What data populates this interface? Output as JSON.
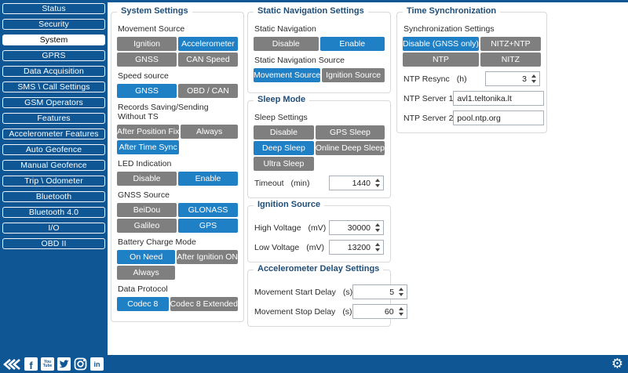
{
  "colors": {
    "dark_blue": "#0e5694",
    "accent_blue": "#1f80c5",
    "button_gray": "#7f7f7f",
    "title_blue": "#1f4e79"
  },
  "sidebar": {
    "items": [
      {
        "label": "Status",
        "active": false
      },
      {
        "label": "Security",
        "active": false
      },
      {
        "label": "System",
        "active": true
      },
      {
        "label": "GPRS",
        "active": false
      },
      {
        "label": "Data Acquisition",
        "active": false
      },
      {
        "label": "SMS \\ Call Settings",
        "active": false
      },
      {
        "label": "GSM Operators",
        "active": false
      },
      {
        "label": "Features",
        "active": false
      },
      {
        "label": "Accelerometer Features",
        "active": false
      },
      {
        "label": "Auto Geofence",
        "active": false
      },
      {
        "label": "Manual Geofence",
        "active": false
      },
      {
        "label": "Trip \\ Odometer",
        "active": false
      },
      {
        "label": "Bluetooth",
        "active": false
      },
      {
        "label": "Bluetooth 4.0",
        "active": false
      },
      {
        "label": "I/O",
        "active": false
      },
      {
        "label": "OBD II",
        "active": false
      }
    ]
  },
  "columns": {
    "col1": [
      {
        "title": "System Settings",
        "items": [
          {
            "type": "label",
            "text": "Movement Source"
          },
          {
            "type": "toggles",
            "buttons": [
              {
                "label": "Ignition",
                "selected": false
              },
              {
                "label": "Accelerometer",
                "selected": true
              },
              {
                "label": "GNSS",
                "selected": false
              },
              {
                "label": "CAN Speed",
                "selected": false
              }
            ]
          },
          {
            "type": "label",
            "text": "Speed source"
          },
          {
            "type": "toggles",
            "buttons": [
              {
                "label": "GNSS",
                "selected": true
              },
              {
                "label": "OBD / CAN",
                "selected": false
              }
            ]
          },
          {
            "type": "label",
            "text": "Records Saving/Sending Without TS"
          },
          {
            "type": "toggles",
            "buttons": [
              {
                "label": "After Position Fix",
                "selected": false
              },
              {
                "label": "Always",
                "selected": false
              },
              {
                "label": "After Time Sync",
                "selected": true
              }
            ]
          },
          {
            "type": "label",
            "text": "LED Indication"
          },
          {
            "type": "toggles",
            "buttons": [
              {
                "label": "Disable",
                "selected": false
              },
              {
                "label": "Enable",
                "selected": true
              }
            ]
          },
          {
            "type": "label",
            "text": "GNSS Source"
          },
          {
            "type": "toggles",
            "buttons": [
              {
                "label": "BeiDou",
                "selected": false
              },
              {
                "label": "GLONASS",
                "selected": true
              },
              {
                "label": "Galileo",
                "selected": false
              },
              {
                "label": "GPS",
                "selected": true
              }
            ]
          },
          {
            "type": "label",
            "text": "Battery Charge Mode"
          },
          {
            "type": "toggles",
            "buttons": [
              {
                "label": "On Need",
                "selected": true
              },
              {
                "label": "After Ignition ON",
                "selected": false
              },
              {
                "label": "Always",
                "selected": false
              }
            ]
          },
          {
            "type": "label",
            "text": "Data Protocol"
          },
          {
            "type": "toggles",
            "buttons": [
              {
                "label": "Codec 8",
                "selected": true
              },
              {
                "label": "Codec 8 Extended",
                "selected": false
              }
            ]
          }
        ]
      }
    ],
    "col2": [
      {
        "title": "Static Navigation Settings",
        "items": [
          {
            "type": "label",
            "text": "Static Navigation"
          },
          {
            "type": "toggles",
            "buttons": [
              {
                "label": "Disable",
                "selected": false
              },
              {
                "label": "Enable",
                "selected": true
              }
            ]
          },
          {
            "type": "label",
            "text": "Static Navigation Source"
          },
          {
            "type": "toggles",
            "buttons": [
              {
                "label": "Movement Source",
                "selected": true
              },
              {
                "label": "Ignition Source",
                "selected": false
              }
            ]
          }
        ]
      },
      {
        "title": "Sleep Mode",
        "items": [
          {
            "type": "label",
            "text": "Sleep Settings"
          },
          {
            "type": "toggles",
            "buttons": [
              {
                "label": "Disable",
                "selected": false
              },
              {
                "label": "GPS Sleep",
                "selected": false
              },
              {
                "label": "Deep Sleep",
                "selected": true
              },
              {
                "label": "Online Deep Sleep",
                "selected": false
              },
              {
                "label": "Ultra Sleep",
                "selected": false
              }
            ]
          },
          {
            "type": "number",
            "label": "Timeout",
            "unit": "(min)",
            "value": "1440"
          }
        ]
      },
      {
        "title": "Ignition Source",
        "items": [
          {
            "type": "number",
            "label": "High Voltage",
            "unit": "(mV)",
            "value": "30000"
          },
          {
            "type": "number",
            "label": "Low Voltage",
            "unit": "(mV)",
            "value": "13200"
          }
        ]
      },
      {
        "title": "Accelerometer Delay Settings",
        "items": [
          {
            "type": "number",
            "label": "Movement Start Delay",
            "unit": "(s)",
            "value": "5"
          },
          {
            "type": "number",
            "label": "Movement Stop Delay",
            "unit": "(s)",
            "value": "60"
          }
        ]
      }
    ],
    "col3": [
      {
        "title": "Time Synchronization",
        "items": [
          {
            "type": "label",
            "text": "Synchronization Settings"
          },
          {
            "type": "toggles",
            "buttons": [
              {
                "label": "Disable (GNSS only)",
                "selected": true
              },
              {
                "label": "NITZ+NTP",
                "selected": false
              },
              {
                "label": "NTP",
                "selected": false
              },
              {
                "label": "NITZ",
                "selected": false
              }
            ]
          },
          {
            "type": "number",
            "label": "NTP Resync",
            "unit": "(h)",
            "value": "3"
          },
          {
            "type": "text",
            "label": "NTP Server 1",
            "value": "avl1.teltonika.lt"
          },
          {
            "type": "text",
            "label": "NTP Server 2",
            "value": "pool.ntp.org"
          }
        ]
      }
    ]
  },
  "footer": {
    "social_icons": [
      "collapse-icon",
      "facebook-icon",
      "youtube-icon",
      "twitter-icon",
      "instagram-icon",
      "linkedin-icon"
    ],
    "settings_icon": "settings-gear-icon"
  }
}
